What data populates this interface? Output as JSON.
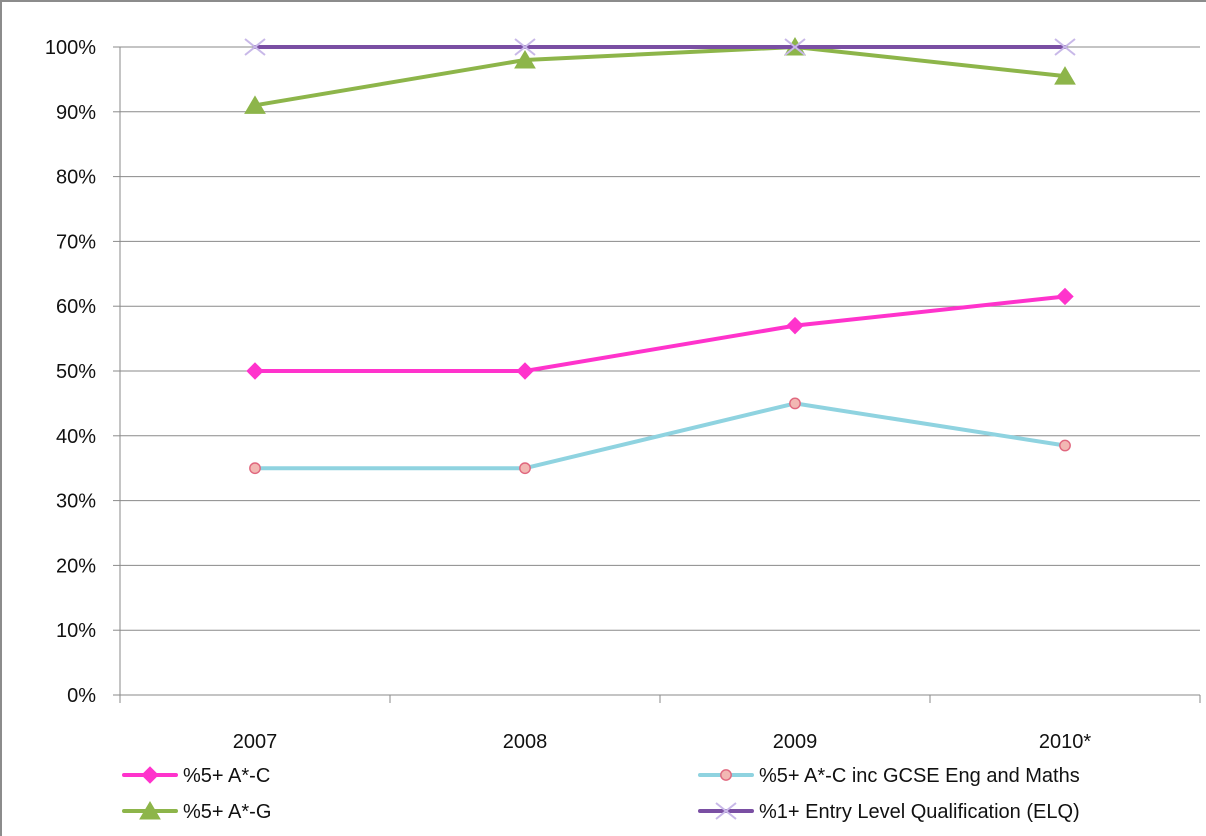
{
  "chart_data": {
    "type": "line",
    "categories": [
      "2007",
      "2008",
      "2009",
      "2010*"
    ],
    "y_axis": {
      "min": 0,
      "max": 100,
      "step": 10,
      "format": "percent",
      "tick_labels": [
        "0%",
        "10%",
        "20%",
        "30%",
        "40%",
        "50%",
        "60%",
        "70%",
        "80%",
        "90%",
        "100%"
      ]
    },
    "grid": {
      "horizontal": true,
      "vertical": false
    },
    "legend_position": "bottom",
    "series": [
      {
        "name": "%5+ A*-C",
        "values": [
          50,
          50,
          57,
          61.5
        ],
        "color": "#FF33CC",
        "marker": "diamond"
      },
      {
        "name": "%5+ A*-C inc GCSE Eng and Maths",
        "values": [
          35,
          35,
          45,
          38.5
        ],
        "color": "#8FD3E0",
        "marker": "circle"
      },
      {
        "name": "%5+ A*-G",
        "values": [
          91,
          98,
          100,
          95.5
        ],
        "color": "#8DB54A",
        "marker": "triangle"
      },
      {
        "name": "%1+ Entry Level Qualification (ELQ)",
        "values": [
          100,
          100,
          100,
          100
        ],
        "color": "#7A4FA3",
        "marker": "x"
      }
    ]
  }
}
